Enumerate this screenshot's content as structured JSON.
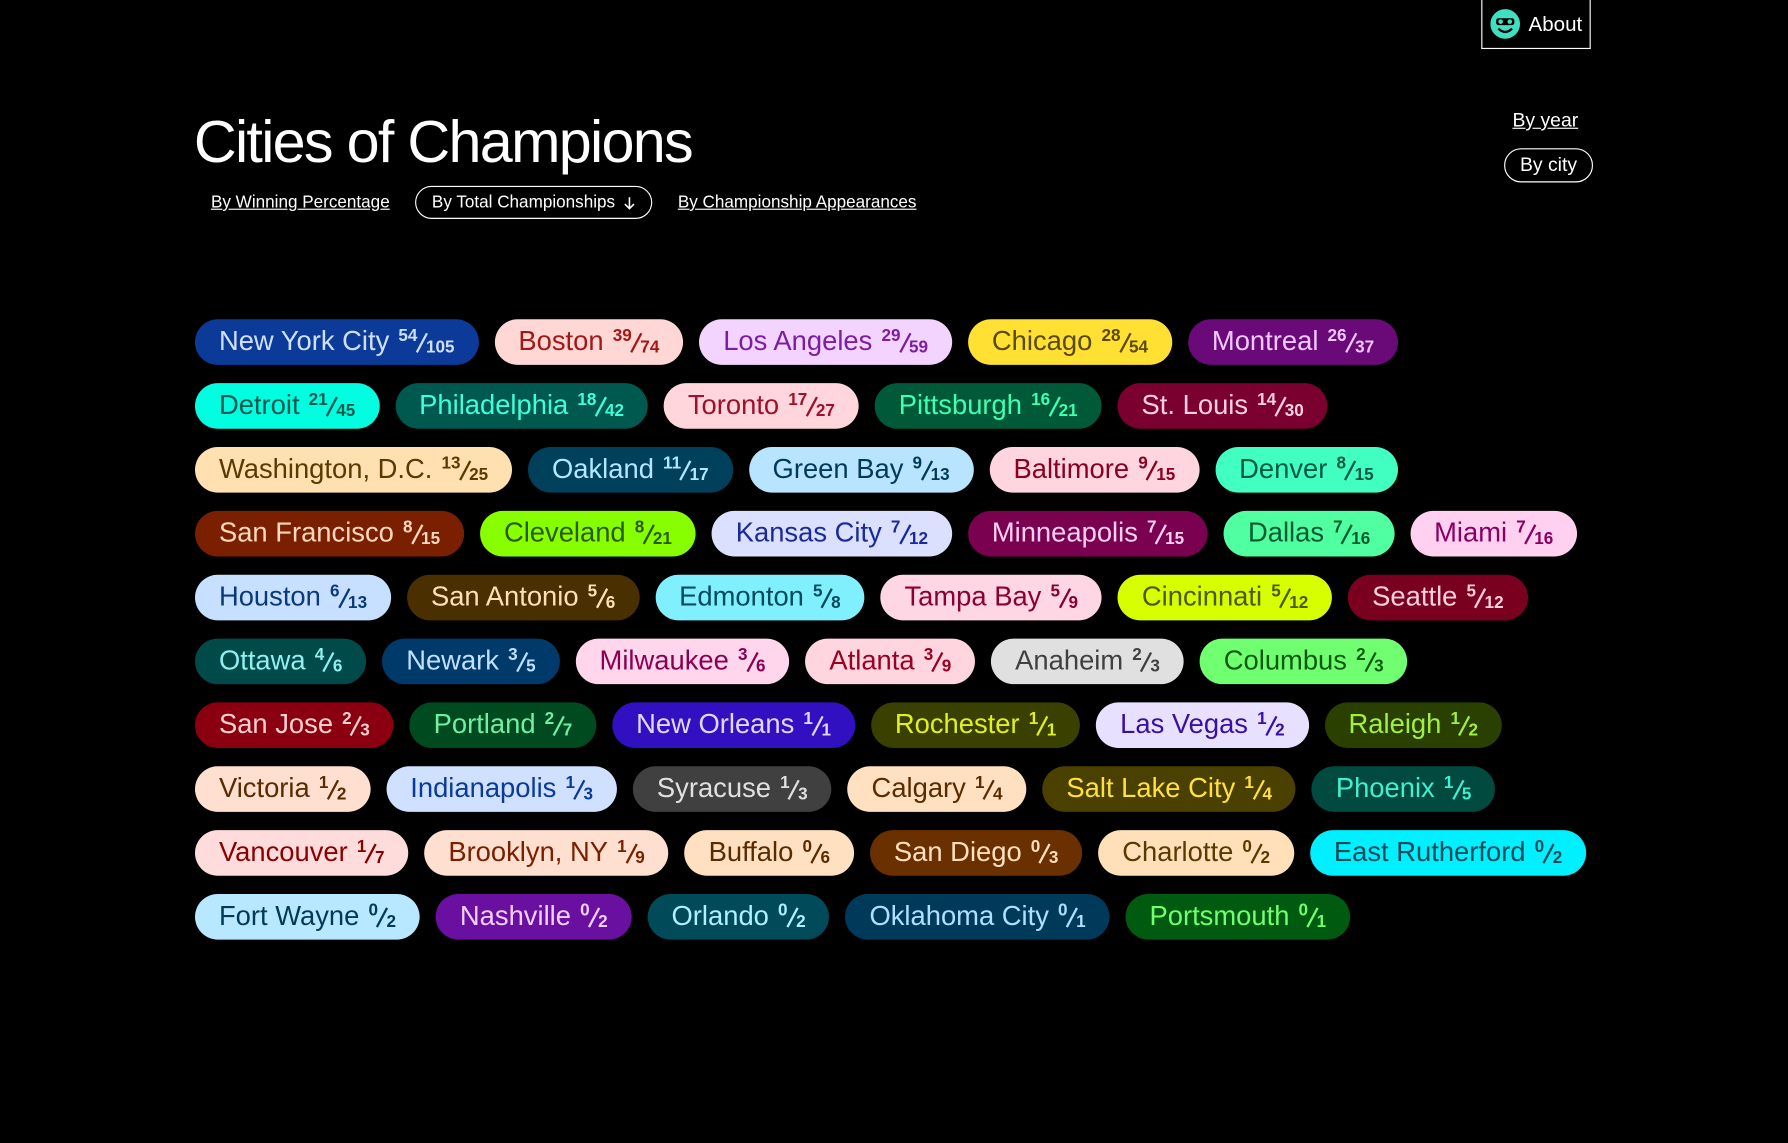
{
  "header": {
    "about": "About",
    "title": "Cities of Champions",
    "views": [
      "By year",
      "By city"
    ],
    "sort_tabs": [
      "By Winning Percentage",
      "By Total Championships",
      "By Championship Appearances"
    ]
  },
  "cities": {
    "rows": [
      [
        {
          "name": "New York City",
          "wins": 54,
          "appearances": 105,
          "bg": "#0b3a98",
          "fg": "#cfe0ff"
        },
        {
          "name": "Boston",
          "wins": 39,
          "appearances": 74,
          "bg": "#ffd8d6",
          "fg": "#a01818"
        },
        {
          "name": "Los Angeles",
          "wins": 29,
          "appearances": 59,
          "bg": "#f3d3ff",
          "fg": "#7a1fa0"
        },
        {
          "name": "Chicago",
          "wins": 28,
          "appearances": 54,
          "bg": "#ffe033",
          "fg": "#5a4a00"
        },
        {
          "name": "Montreal",
          "wins": 26,
          "appearances": 37,
          "bg": "#6a0a78",
          "fg": "#f0c8ff"
        }
      ],
      [
        {
          "name": "Detroit",
          "wins": 21,
          "appearances": 45,
          "bg": "#00ffe0",
          "fg": "#005a50"
        },
        {
          "name": "Philadelphia",
          "wins": 18,
          "appearances": 42,
          "bg": "#00594f",
          "fg": "#40ffd8"
        },
        {
          "name": "Toronto",
          "wins": 17,
          "appearances": 27,
          "bg": "#ffd6dc",
          "fg": "#a0102a"
        },
        {
          "name": "Pittsburgh",
          "wins": 16,
          "appearances": 21,
          "bg": "#005a3a",
          "fg": "#40ffb0"
        },
        {
          "name": "St. Louis",
          "wins": 14,
          "appearances": 30,
          "bg": "#7a0030",
          "fg": "#ffd0e0"
        }
      ],
      [
        {
          "name": "Washington, D.C.",
          "wins": 13,
          "appearances": 25,
          "bg": "#ffe0b0",
          "fg": "#5a3a00"
        },
        {
          "name": "Oakland",
          "wins": 11,
          "appearances": 17,
          "bg": "#00405a",
          "fg": "#b0e8ff"
        },
        {
          "name": "Green Bay",
          "wins": 9,
          "appearances": 13,
          "bg": "#b8e4ff",
          "fg": "#003a5a"
        },
        {
          "name": "Baltimore",
          "wins": 9,
          "appearances": 15,
          "bg": "#ffd6e0",
          "fg": "#8a0020"
        },
        {
          "name": "Denver",
          "wins": 8,
          "appearances": 15,
          "bg": "#40ffc0",
          "fg": "#005a40"
        }
      ],
      [
        {
          "name": "San Francisco",
          "wins": 8,
          "appearances": 15,
          "bg": "#7a2000",
          "fg": "#ffd8c0"
        },
        {
          "name": "Cleveland",
          "wins": 8,
          "appearances": 21,
          "bg": "#88ff00",
          "fg": "#2a5a00"
        },
        {
          "name": "Kansas City",
          "wins": 7,
          "appearances": 12,
          "bg": "#dce0ff",
          "fg": "#1a2a9a"
        },
        {
          "name": "Minneapolis",
          "wins": 7,
          "appearances": 15,
          "bg": "#7a0050",
          "fg": "#ffd0f0"
        },
        {
          "name": "Dallas",
          "wins": 7,
          "appearances": 16,
          "bg": "#50ffa0",
          "fg": "#005a30"
        },
        {
          "name": "Miami",
          "wins": 7,
          "appearances": 16,
          "bg": "#ffd0f0",
          "fg": "#8a0060"
        }
      ],
      [
        {
          "name": "Houston",
          "wins": 6,
          "appearances": 13,
          "bg": "#c8e0ff",
          "fg": "#0a3a7a"
        },
        {
          "name": "San Antonio",
          "wins": 5,
          "appearances": 6,
          "bg": "#4a3000",
          "fg": "#ffe0b0"
        },
        {
          "name": "Edmonton",
          "wins": 5,
          "appearances": 8,
          "bg": "#80f0ff",
          "fg": "#004a5a"
        },
        {
          "name": "Tampa Bay",
          "wins": 5,
          "appearances": 9,
          "bg": "#ffd6e4",
          "fg": "#8a0030"
        },
        {
          "name": "Cincinnati",
          "wins": 5,
          "appearances": 12,
          "bg": "#d8ff00",
          "fg": "#4a5a00"
        },
        {
          "name": "Seattle",
          "wins": 5,
          "appearances": 12,
          "bg": "#7a0020",
          "fg": "#ffd0d8"
        }
      ],
      [
        {
          "name": "Ottawa",
          "wins": 4,
          "appearances": 6,
          "bg": "#004a4a",
          "fg": "#90f0f0"
        },
        {
          "name": "Newark",
          "wins": 3,
          "appearances": 5,
          "bg": "#003a6a",
          "fg": "#c0e0ff"
        },
        {
          "name": "Milwaukee",
          "wins": 3,
          "appearances": 6,
          "bg": "#ffd6ec",
          "fg": "#8a0050"
        },
        {
          "name": "Atlanta",
          "wins": 3,
          "appearances": 9,
          "bg": "#ffd6e0",
          "fg": "#9a0020"
        },
        {
          "name": "Anaheim",
          "wins": 2,
          "appearances": 3,
          "bg": "#e0e0e0",
          "fg": "#404040"
        },
        {
          "name": "Columbus",
          "wins": 2,
          "appearances": 3,
          "bg": "#70ff70",
          "fg": "#105a10"
        }
      ],
      [
        {
          "name": "San Jose",
          "wins": 2,
          "appearances": 3,
          "bg": "#8a0010",
          "fg": "#ffd0d0"
        },
        {
          "name": "Portland",
          "wins": 2,
          "appearances": 7,
          "bg": "#004a20",
          "fg": "#70f0a0"
        },
        {
          "name": "New Orleans",
          "wins": 1,
          "appearances": 1,
          "bg": "#3010c0",
          "fg": "#e0d8ff"
        },
        {
          "name": "Rochester",
          "wins": 1,
          "appearances": 1,
          "bg": "#3a4000",
          "fg": "#e0f020"
        },
        {
          "name": "Las Vegas",
          "wins": 1,
          "appearances": 2,
          "bg": "#e8e0ff",
          "fg": "#3a10a0"
        },
        {
          "name": "Raleigh",
          "wins": 1,
          "appearances": 2,
          "bg": "#2a4000",
          "fg": "#a0f040"
        }
      ],
      [
        {
          "name": "Victoria",
          "wins": 1,
          "appearances": 2,
          "bg": "#ffe0d0",
          "fg": "#5a2a00"
        },
        {
          "name": "Indianapolis",
          "wins": 1,
          "appearances": 3,
          "bg": "#d0e0ff",
          "fg": "#0a3a9a"
        },
        {
          "name": "Syracuse",
          "wins": 1,
          "appearances": 3,
          "bg": "#404040",
          "fg": "#e0e0e0"
        },
        {
          "name": "Calgary",
          "wins": 1,
          "appearances": 4,
          "bg": "#ffe0c0",
          "fg": "#5a2a00"
        },
        {
          "name": "Salt Lake City",
          "wins": 1,
          "appearances": 4,
          "bg": "#4a4000",
          "fg": "#ffe040"
        },
        {
          "name": "Phoenix",
          "wins": 1,
          "appearances": 5,
          "bg": "#004a40",
          "fg": "#40f0d0"
        }
      ],
      [
        {
          "name": "Vancouver",
          "wins": 1,
          "appearances": 7,
          "bg": "#ffdcdc",
          "fg": "#8a0000"
        },
        {
          "name": "Brooklyn, NY",
          "wins": 1,
          "appearances": 9,
          "bg": "#ffe0d0",
          "fg": "#7a2000"
        },
        {
          "name": "Buffalo",
          "wins": 0,
          "appearances": 6,
          "bg": "#ffe0c0",
          "fg": "#5a2a00"
        },
        {
          "name": "San Diego",
          "wins": 0,
          "appearances": 3,
          "bg": "#6a3000",
          "fg": "#ffe0c0"
        },
        {
          "name": "Charlotte",
          "wins": 0,
          "appearances": 2,
          "bg": "#ffe0b8",
          "fg": "#5a3a00"
        },
        {
          "name": "East Rutherford",
          "wins": 0,
          "appearances": 2,
          "bg": "#00f0ff",
          "fg": "#004a5a"
        }
      ],
      [
        {
          "name": "Fort Wayne",
          "wins": 0,
          "appearances": 2,
          "bg": "#b8e8ff",
          "fg": "#003a5a"
        },
        {
          "name": "Nashville",
          "wins": 0,
          "appearances": 2,
          "bg": "#6a10a0",
          "fg": "#f0d0ff"
        },
        {
          "name": "Orlando",
          "wins": 0,
          "appearances": 2,
          "bg": "#004a5a",
          "fg": "#b0f0ff"
        },
        {
          "name": "Oklahoma City",
          "wins": 0,
          "appearances": 1,
          "bg": "#003a5a",
          "fg": "#b0e0ff"
        },
        {
          "name": "Portsmouth",
          "wins": 0,
          "appearances": 1,
          "bg": "#005a10",
          "fg": "#70ff70"
        }
      ]
    ]
  }
}
